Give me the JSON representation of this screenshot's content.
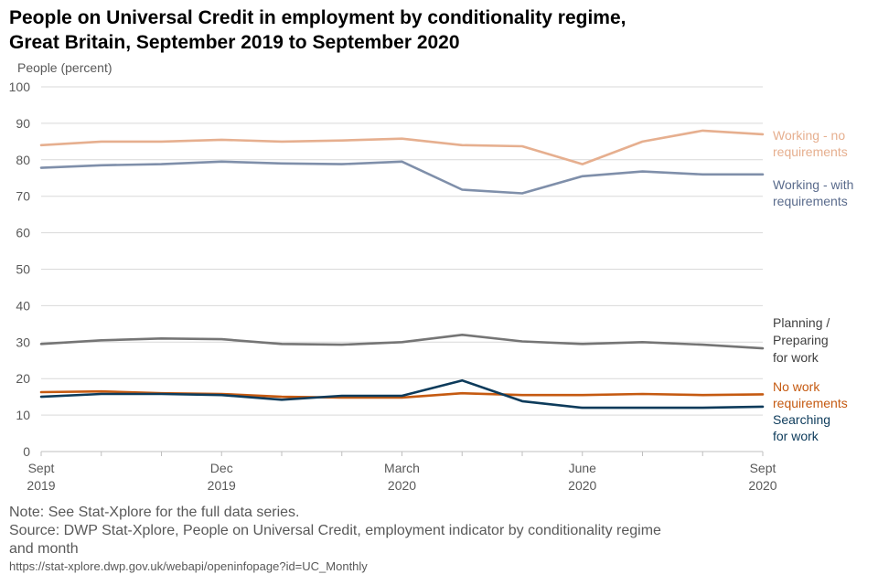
{
  "title_lines": [
    "People on Universal Credit in employment by conditionality regime,",
    "Great Britain, September 2019 to September 2020"
  ],
  "chart_data": {
    "type": "line",
    "ylabel": "People (percent)",
    "ylim": [
      0,
      100
    ],
    "yticks": [
      0,
      10,
      20,
      30,
      40,
      50,
      60,
      70,
      80,
      90,
      100
    ],
    "grid": true,
    "x_months": [
      "Sep 2019",
      "Oct 2019",
      "Nov 2019",
      "Dec 2019",
      "Jan 2020",
      "Feb 2020",
      "Mar 2020",
      "Apr 2020",
      "May 2020",
      "Jun 2020",
      "Jul 2020",
      "Aug 2020",
      "Sep 2020"
    ],
    "x_tick_labels": [
      {
        "index": 0,
        "line1": "Sept",
        "line2": "2019"
      },
      {
        "index": 3,
        "line1": "Dec",
        "line2": "2019"
      },
      {
        "index": 6,
        "line1": "March",
        "line2": "2020"
      },
      {
        "index": 9,
        "line1": "June",
        "line2": "2020"
      },
      {
        "index": 12,
        "line1": "Sept",
        "line2": "2020"
      }
    ],
    "series": [
      {
        "key": "working-no-req",
        "name": "Working - no requirements",
        "label_lines": [
          "Working - no",
          "requirements"
        ],
        "color": "#E6AF8F",
        "label_color": "#E6AF8F",
        "values": [
          84,
          85,
          85,
          85.5,
          85,
          85.3,
          85.8,
          84,
          83.7,
          78.8,
          85,
          88,
          87
        ]
      },
      {
        "key": "working-with-req",
        "name": "Working - with requirements",
        "label_lines": [
          "Working - with",
          "requirements"
        ],
        "color": "#7F8FAA",
        "label_color": "#5A6B8C",
        "values": [
          77.8,
          78.5,
          78.8,
          79.5,
          79,
          78.8,
          79.5,
          71.8,
          70.8,
          75.5,
          76.8,
          76,
          76
        ]
      },
      {
        "key": "planning-preparing",
        "name": "Planning / Preparing for work",
        "label_lines": [
          "Planning /",
          "Preparing",
          "for work"
        ],
        "color": "#757575",
        "label_color": "#404040",
        "values": [
          29.5,
          30.5,
          31,
          30.8,
          29.5,
          29.3,
          30,
          32,
          30.2,
          29.5,
          30,
          29.3,
          28.3
        ]
      },
      {
        "key": "no-work-req",
        "name": "No work requirements",
        "label_lines": [
          "No work",
          "requirements"
        ],
        "color": "#C55A11",
        "label_color": "#C55A11",
        "values": [
          16.3,
          16.5,
          16,
          15.8,
          15,
          14.8,
          14.8,
          16,
          15.5,
          15.5,
          15.8,
          15.5,
          15.7
        ]
      },
      {
        "key": "searching",
        "name": "Searching for work",
        "label_lines": [
          "Searching",
          "for work"
        ],
        "color": "#0D3B5B",
        "label_color": "#0D3B5B",
        "values": [
          15,
          15.8,
          15.8,
          15.5,
          14.2,
          15.3,
          15.3,
          19.5,
          13.8,
          12,
          12,
          12,
          12.3
        ]
      }
    ]
  },
  "notes": {
    "note": "Note: See Stat-Xplore for the full data series.",
    "source_line1": "Source: DWP Stat-Xplore, People on Universal Credit, employment indicator by conditionality regime",
    "source_line2": "and month",
    "url": "https://stat-xplore.dwp.gov.uk/webapi/openinfopage?id=UC_Monthly"
  }
}
